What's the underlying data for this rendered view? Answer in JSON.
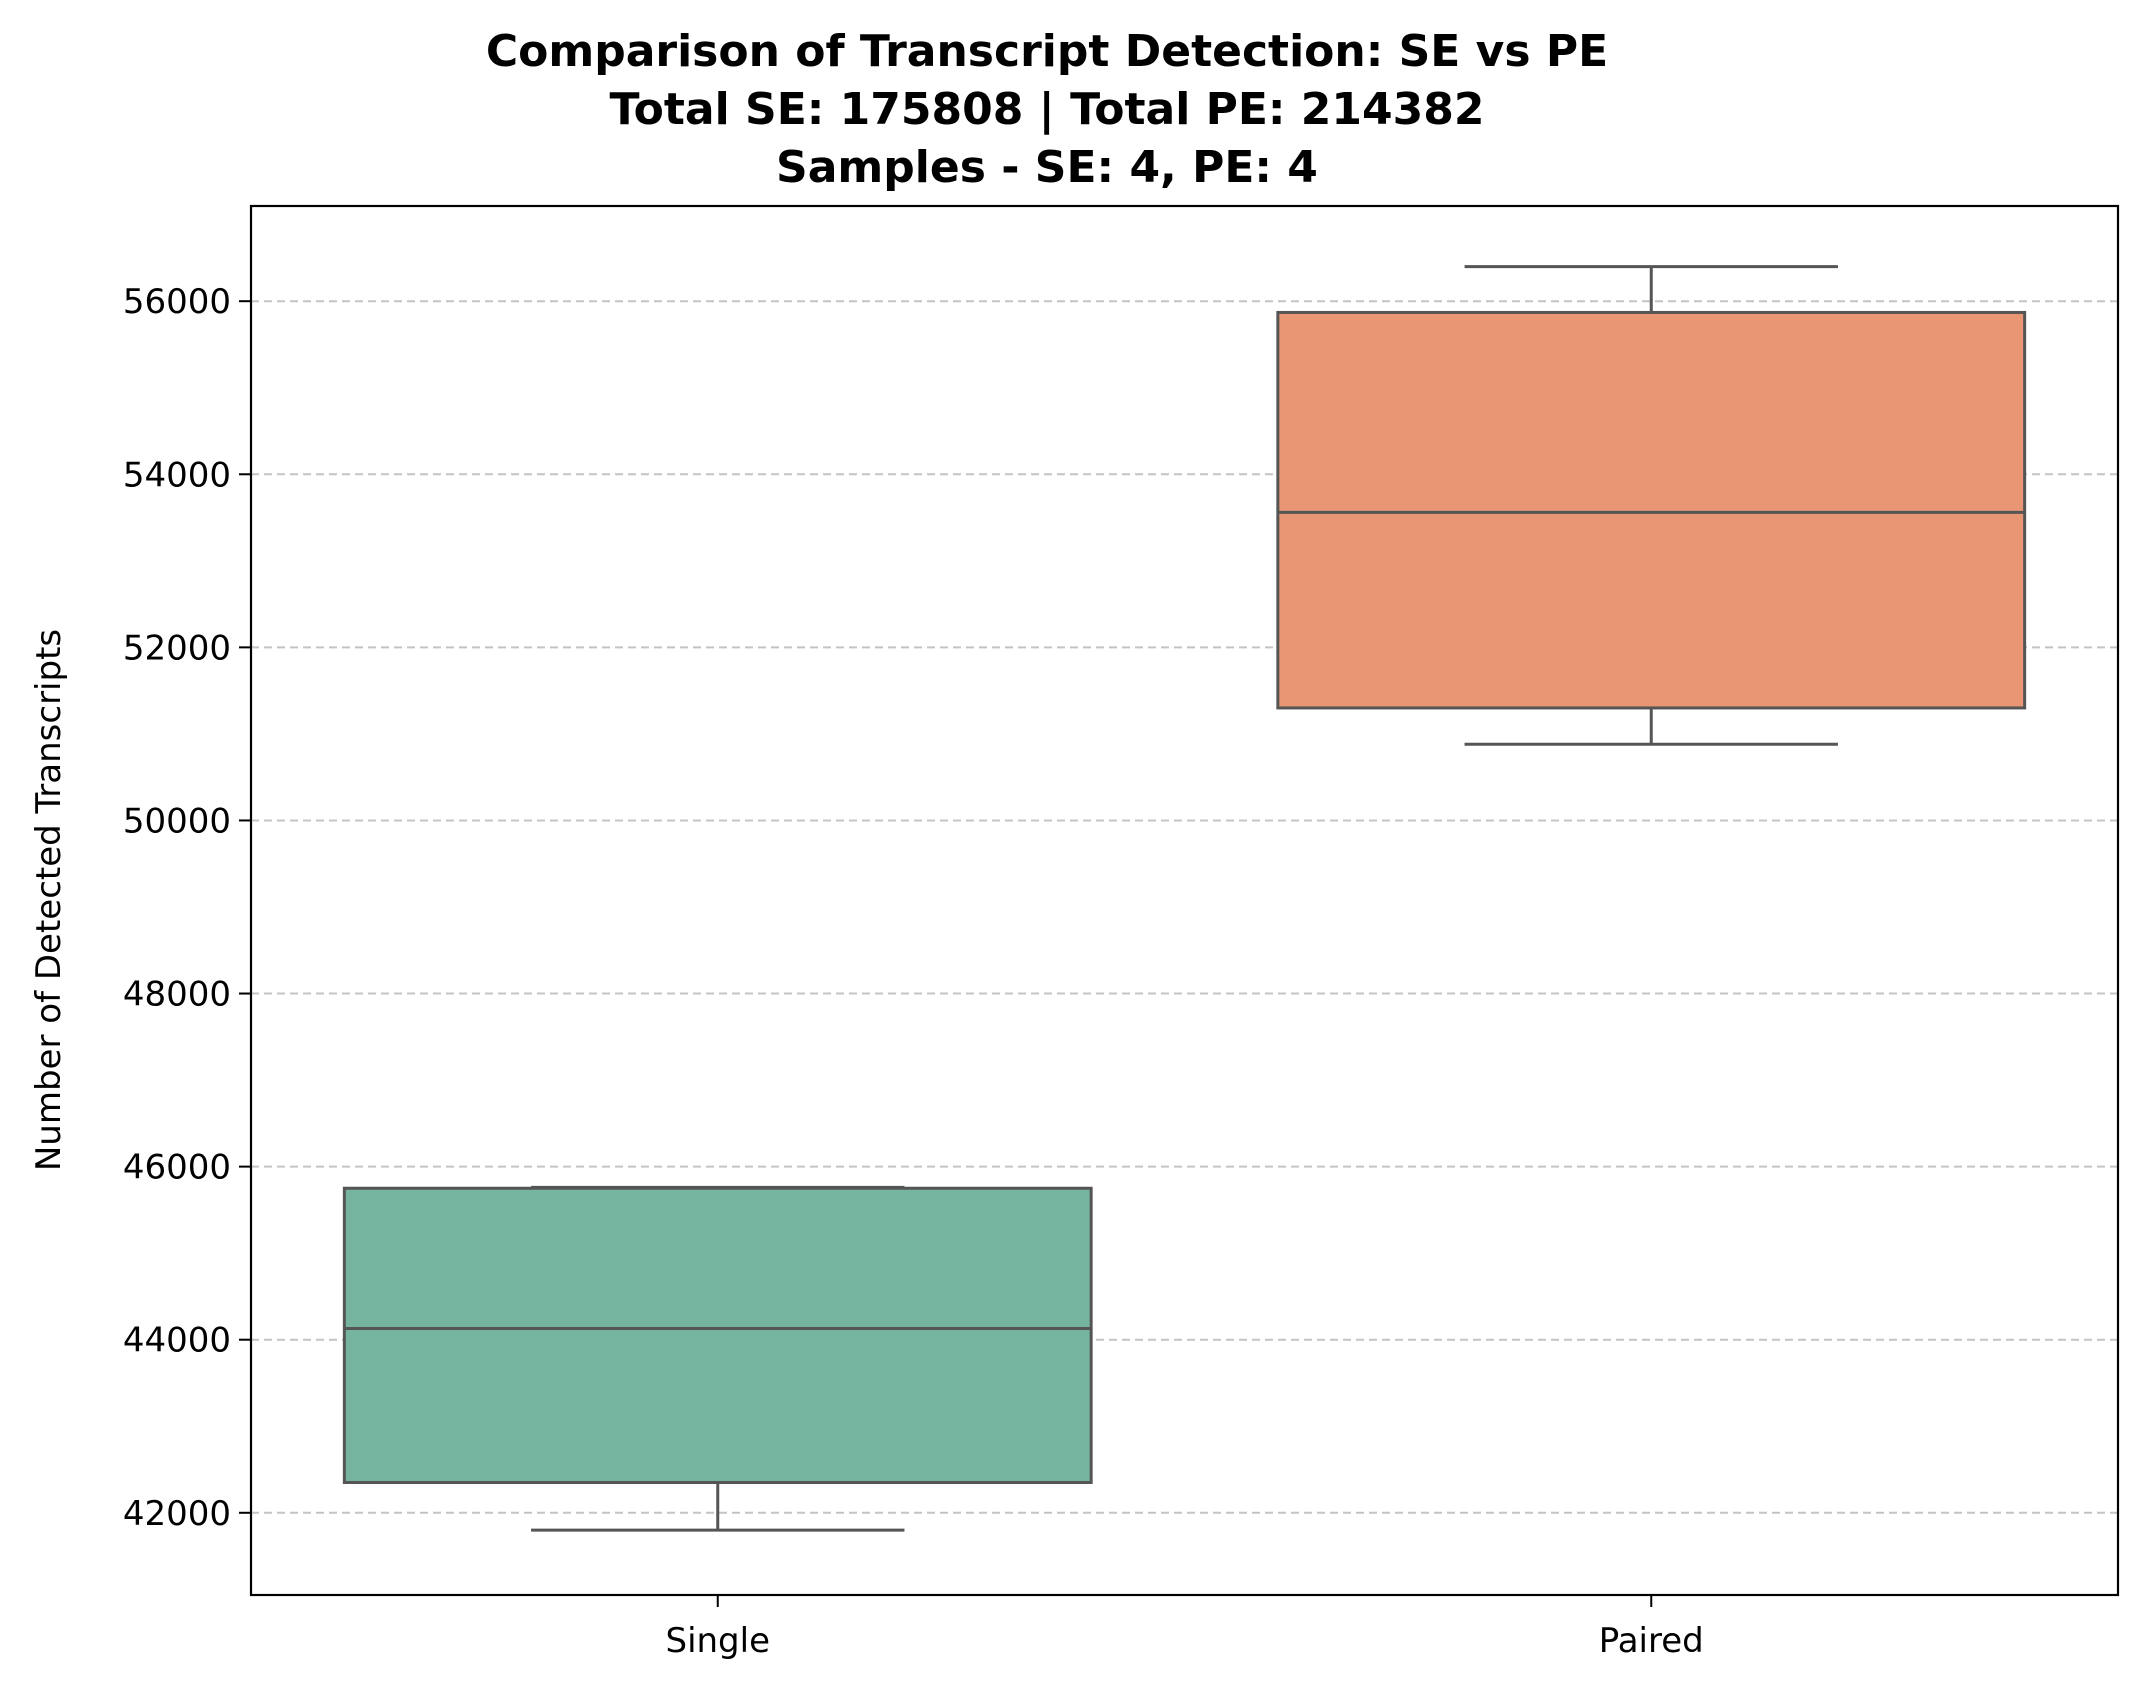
{
  "chart_data": {
    "type": "box",
    "title": [
      "Comparison of Transcript Detection: SE vs PE",
      "Total SE: 175808 | Total PE: 214382",
      "Samples - SE: 4, PE: 4"
    ],
    "xlabel": "",
    "ylabel": "Number of Detected Transcripts",
    "ylim": [
      41050,
      57100
    ],
    "yticks": [
      42000,
      44000,
      46000,
      48000,
      50000,
      52000,
      54000,
      56000
    ],
    "ytick_labels": [
      "42000",
      "44000",
      "46000",
      "48000",
      "50000",
      "52000",
      "54000",
      "56000"
    ],
    "grid": "y-dashed",
    "categories": [
      "Single",
      "Paired"
    ],
    "boxes": [
      {
        "name": "Single",
        "whisker_low": 41800,
        "q1": 42350,
        "median": 44130,
        "q3": 45750,
        "whisker_high": 45760,
        "color": "#75b5a0"
      },
      {
        "name": "Paired",
        "whisker_low": 50880,
        "q1": 51300,
        "median": 53560,
        "q3": 55870,
        "whisker_high": 56400,
        "color": "#e99674"
      }
    ],
    "line_color": "#555555"
  }
}
